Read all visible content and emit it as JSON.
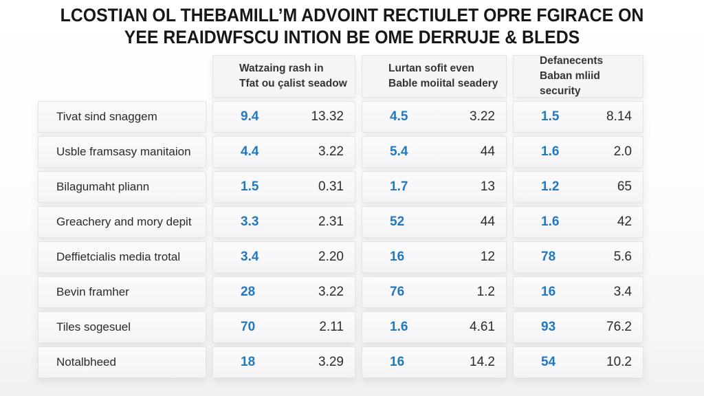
{
  "title": {
    "line1": "LCOSTIAN OL THEBAMILL’M ADVOINT RECTIULET OPRE FGIRACE ON",
    "line2": "YEE REAIDWFSCU INTION BE OME DERRUJE & BLEDS"
  },
  "colors": {
    "accent_blue": "#2079c0",
    "value_dark": "#2b2b30",
    "title_text": "#17171a"
  },
  "table": {
    "column_groups": [
      {
        "header_line1": "Watzaing rash in",
        "header_line2": "Tfat ou çalist seadow"
      },
      {
        "header_line1": "Lurtan sofit even",
        "header_line2": "Bable moiital seadery"
      },
      {
        "header_line1": "Defanecents",
        "header_line2": "Baban mliid security"
      }
    ],
    "rows": [
      {
        "label": "Tivat sind snaggem",
        "values": [
          [
            "9.4",
            "13.32"
          ],
          [
            "4.5",
            "3.22"
          ],
          [
            "1.5",
            "8.14"
          ]
        ]
      },
      {
        "label": "Usble framsasy manitaion",
        "values": [
          [
            "4.4",
            "3.22"
          ],
          [
            "5.4",
            "44"
          ],
          [
            "1.6",
            "2.0"
          ]
        ]
      },
      {
        "label": "Bilagumaht pliann",
        "values": [
          [
            "1.5",
            "0.31"
          ],
          [
            "1.7",
            "13"
          ],
          [
            "1.2",
            "65"
          ]
        ]
      },
      {
        "label": "Greachery and mory depit",
        "values": [
          [
            "3.3",
            "2.31"
          ],
          [
            "52",
            "44"
          ],
          [
            "1.6",
            "42"
          ]
        ]
      },
      {
        "label": "Deffietcialis media trotal",
        "values": [
          [
            "3.4",
            "2.20"
          ],
          [
            "16",
            "12"
          ],
          [
            "78",
            "5.6"
          ]
        ]
      },
      {
        "label": "Bevin framher",
        "values": [
          [
            "28",
            "3.22"
          ],
          [
            "76",
            "1.2"
          ],
          [
            "16",
            "3.4"
          ]
        ]
      },
      {
        "label": "Tiles sogesuel",
        "values": [
          [
            "70",
            "2.11"
          ],
          [
            "1.6",
            "4.61"
          ],
          [
            "93",
            "76.2"
          ]
        ]
      },
      {
        "label": "Notalbheed",
        "values": [
          [
            "18",
            "3.29"
          ],
          [
            "16",
            "14.2"
          ],
          [
            "54",
            "10.2"
          ]
        ]
      }
    ]
  },
  "chart_data": {
    "type": "table",
    "title": "LCOSTIAN OL THEBAMILL’M ADVOINT RECTIULET OPRE FGIRACE ON YEE REAIDWFSCU INTION BE OME DERRUJE & BLEDS",
    "column_groups": [
      "Watzaing rash in Tfat ou çalist seadow",
      "Lurtan sofit even Bable moiital seadery",
      "Defanecents Baban mliid security"
    ],
    "value_columns_per_group": [
      "highlight (blue)",
      "secondary (dark)"
    ],
    "rows": [
      {
        "label": "Tivat sind snaggem",
        "group1": [
          9.4,
          13.32
        ],
        "group2": [
          4.5,
          3.22
        ],
        "group3": [
          1.5,
          8.14
        ]
      },
      {
        "label": "Usble framsasy manitaion",
        "group1": [
          4.4,
          3.22
        ],
        "group2": [
          5.4,
          44
        ],
        "group3": [
          1.6,
          2.0
        ]
      },
      {
        "label": "Bilagumaht pliann",
        "group1": [
          1.5,
          0.31
        ],
        "group2": [
          1.7,
          13
        ],
        "group3": [
          1.2,
          65
        ]
      },
      {
        "label": "Greachery and mory depit",
        "group1": [
          3.3,
          2.31
        ],
        "group2": [
          52,
          44
        ],
        "group3": [
          1.6,
          42
        ]
      },
      {
        "label": "Deffietcialis media trotal",
        "group1": [
          3.4,
          2.2
        ],
        "group2": [
          16,
          12
        ],
        "group3": [
          78,
          5.6
        ]
      },
      {
        "label": "Bevin framher",
        "group1": [
          28,
          3.22
        ],
        "group2": [
          76,
          1.2
        ],
        "group3": [
          16,
          3.4
        ]
      },
      {
        "label": "Tiles sogesuel",
        "group1": [
          70,
          2.11
        ],
        "group2": [
          1.6,
          4.61
        ],
        "group3": [
          93,
          76.2
        ]
      },
      {
        "label": "Notalbheed",
        "group1": [
          18,
          3.29
        ],
        "group2": [
          16,
          14.2
        ],
        "group3": [
          54,
          10.2
        ]
      }
    ]
  }
}
